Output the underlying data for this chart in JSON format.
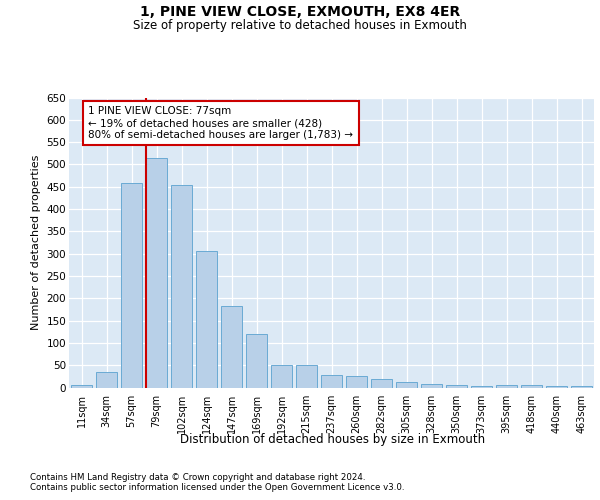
{
  "title": "1, PINE VIEW CLOSE, EXMOUTH, EX8 4ER",
  "subtitle": "Size of property relative to detached houses in Exmouth",
  "xlabel": "Distribution of detached houses by size in Exmouth",
  "ylabel": "Number of detached properties",
  "categories": [
    "11sqm",
    "34sqm",
    "57sqm",
    "79sqm",
    "102sqm",
    "124sqm",
    "147sqm",
    "169sqm",
    "192sqm",
    "215sqm",
    "237sqm",
    "260sqm",
    "282sqm",
    "305sqm",
    "328sqm",
    "350sqm",
    "373sqm",
    "395sqm",
    "418sqm",
    "440sqm",
    "463sqm"
  ],
  "values": [
    5,
    35,
    458,
    515,
    455,
    305,
    182,
    120,
    50,
    50,
    28,
    25,
    18,
    12,
    8,
    5,
    3,
    5,
    5,
    3,
    3
  ],
  "bar_color": "#b8d0e8",
  "bar_edge_color": "#6aaad4",
  "plot_bg_color": "#dce9f5",
  "vline_color": "#cc0000",
  "vline_index": 2.575,
  "annotation_text": "1 PINE VIEW CLOSE: 77sqm\n← 19% of detached houses are smaller (428)\n80% of semi-detached houses are larger (1,783) →",
  "ann_box_edge": "#cc0000",
  "ylim_max": 650,
  "yticks": [
    0,
    50,
    100,
    150,
    200,
    250,
    300,
    350,
    400,
    450,
    500,
    550,
    600,
    650
  ],
  "footnote1": "Contains HM Land Registry data © Crown copyright and database right 2024.",
  "footnote2": "Contains public sector information licensed under the Open Government Licence v3.0."
}
